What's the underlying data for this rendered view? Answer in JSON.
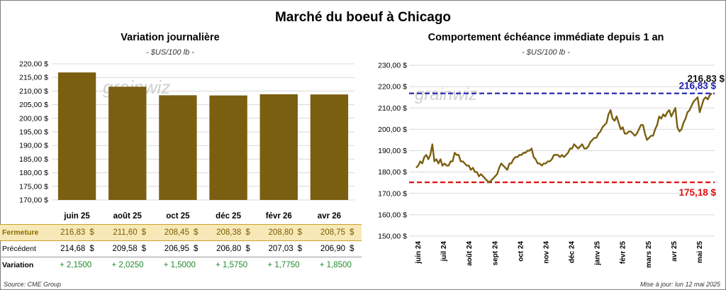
{
  "title": "Marché du boeuf à Chicago",
  "left_panel": {
    "title": "Variation journalière",
    "unit": "- $US/100 lb -",
    "table": {
      "rows": [
        {
          "label": "Fermeture",
          "values": [
            "216,83",
            "211,60",
            "208,45",
            "208,38",
            "208,80",
            "208,75"
          ],
          "suffix": "$"
        },
        {
          "label": "Précédent",
          "values": [
            "214,68",
            "209,58",
            "206,95",
            "206,80",
            "207,03",
            "206,90"
          ],
          "suffix": "$"
        },
        {
          "label": "Variation",
          "values": [
            "+ 2,1500",
            "+ 2,0250",
            "+ 1,5000",
            "+ 1,5750",
            "+ 1,7750",
            "+ 1,8500"
          ]
        }
      ]
    },
    "source": "Source: CME Group"
  },
  "right_panel": {
    "title": "Comportement échéance immédiate depuis 1 an",
    "unit": "- $US/100 lb -",
    "update_text": "Mise à jour: lun 12 mai 2025",
    "last_label": "216,83 $",
    "high_label": "216,83 $",
    "low_label": "175,18 $"
  },
  "watermark": "grainwiz",
  "colors": {
    "bar": "#7a5f10",
    "line": "#7a5f10",
    "high": "#1f1fb0",
    "low": "#e01010",
    "gain": "#1f8a2c"
  },
  "chart_data": [
    {
      "type": "bar",
      "title": "Variation journalière",
      "categories": [
        "juin 25",
        "août 25",
        "oct 25",
        "déc 25",
        "févr 26",
        "avr 26"
      ],
      "values": [
        216.83,
        211.6,
        208.45,
        208.38,
        208.8,
        208.75
      ],
      "ylim": [
        170,
        220
      ],
      "yticks": [
        "170,00 $",
        "175,00 $",
        "180,00 $",
        "185,00 $",
        "190,00 $",
        "195,00 $",
        "200,00 $",
        "205,00 $",
        "210,00 $",
        "215,00 $",
        "220,00 $"
      ],
      "grid": true
    },
    {
      "type": "line",
      "title": "Comportement échéance immédiate depuis 1 an",
      "x_labels": [
        "juin 24",
        "juil 24",
        "août 24",
        "sept 24",
        "oct 24",
        "nov 24",
        "déc 24",
        "janv 25",
        "févr 25",
        "mars 25",
        "avr 25",
        "mai 25"
      ],
      "ylim": [
        150,
        230
      ],
      "yticks": [
        "150,00 $",
        "160,00 $",
        "170,00 $",
        "180,00 $",
        "190,00 $",
        "200,00 $",
        "210,00 $",
        "220,00 $",
        "230,00 $"
      ],
      "y": [
        182,
        183,
        185,
        184,
        187,
        188,
        186,
        188,
        193,
        185,
        186,
        184,
        186,
        183,
        184,
        183,
        183,
        185,
        185,
        189,
        188,
        188,
        185,
        185,
        184,
        183,
        183,
        181,
        182,
        180,
        180,
        178,
        179,
        178,
        177,
        176,
        175.2,
        176,
        177,
        178,
        179,
        182,
        184,
        183,
        182,
        181,
        184,
        184,
        186,
        187,
        187,
        188,
        188,
        189,
        189,
        190,
        190,
        191,
        187,
        186,
        184,
        184,
        183,
        184,
        184,
        185,
        185,
        186,
        188,
        188,
        188,
        187,
        188,
        187,
        188,
        189,
        191,
        191,
        193,
        192,
        191,
        192,
        193,
        191,
        191,
        192,
        194,
        195,
        196,
        196,
        198,
        199,
        201,
        202,
        203,
        207,
        209,
        205,
        204,
        206,
        203,
        200,
        201,
        198,
        198,
        199,
        199,
        198,
        197,
        198,
        200,
        202,
        202,
        198,
        195,
        196,
        197,
        197,
        200,
        202,
        206,
        205,
        207,
        206,
        208,
        209,
        206,
        208,
        210,
        201,
        199,
        200,
        203,
        205,
        208,
        209,
        211,
        213,
        214,
        215,
        208,
        211,
        214,
        215,
        214,
        216,
        216.83
      ],
      "hlines": [
        216.83,
        175.18
      ],
      "grid": true
    }
  ]
}
